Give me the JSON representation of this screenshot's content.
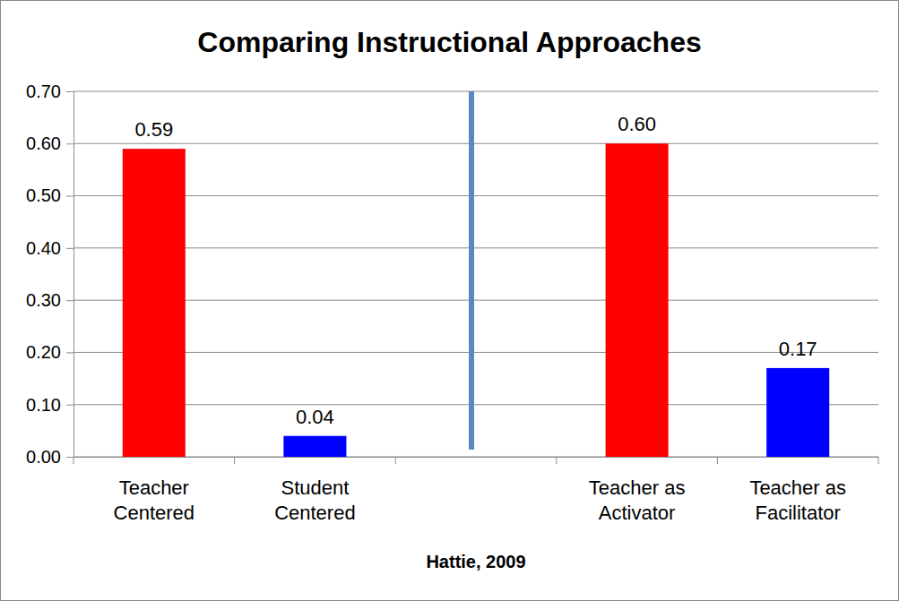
{
  "chart_data": {
    "type": "bar",
    "title": "Comparing Instructional Approaches",
    "x_label": "Hattie, 2009",
    "categories": [
      "Teacher Centered",
      "Student Centered",
      null,
      "Teacher as Activator",
      "Teacher as Facilitator"
    ],
    "values": [
      0.59,
      0.04,
      null,
      0.6,
      0.17
    ],
    "value_labels": [
      "0.59",
      "0.04",
      null,
      "0.60",
      "0.17"
    ],
    "colors": [
      "#ff0000",
      "#0000ff",
      null,
      "#ff0000",
      "#0000ff"
    ],
    "ylim": [
      0,
      0.7
    ],
    "yticks": [
      {
        "value": 0,
        "label": "0.00"
      },
      {
        "value": 0.1,
        "label": "0.10"
      },
      {
        "value": 0.2,
        "label": "0.20"
      },
      {
        "value": 0.3,
        "label": "0.30"
      },
      {
        "value": 0.4,
        "label": "0.40"
      },
      {
        "value": 0.5,
        "label": "0.50"
      },
      {
        "value": 0.6,
        "label": "0.60"
      },
      {
        "value": 0.7,
        "label": "0.70"
      }
    ],
    "grid": true,
    "data_labels": true
  }
}
